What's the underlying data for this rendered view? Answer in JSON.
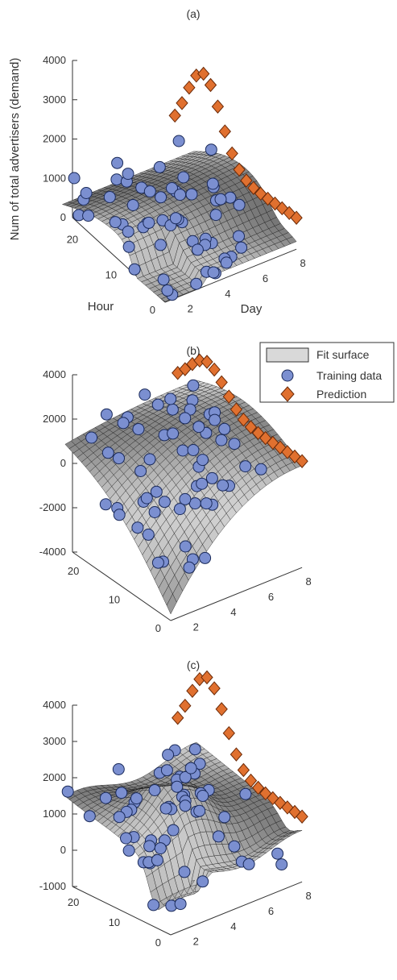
{
  "legend": {
    "items": [
      {
        "label": "Fit surface",
        "marker": "rect",
        "color": "#d9d9d9"
      },
      {
        "label": "Training data",
        "marker": "circle",
        "color": "#7b8fd0"
      },
      {
        "label": "Prediction",
        "marker": "diamond",
        "color": "#e0702f"
      }
    ]
  },
  "colors": {
    "training": "#7b8fd0",
    "training_edge": "#1a2a5a",
    "prediction": "#e0702f",
    "prediction_edge": "#6b2a08",
    "surface": "#c9c9c9"
  },
  "chart_data": [
    {
      "panel": "(a)",
      "type": "surface3d",
      "title": "(a)",
      "zlabel": "Num of total advertisers (demand)",
      "xlabel": "Day",
      "ylabel": "Hour",
      "x_ticks": [
        "2",
        "4",
        "6",
        "8"
      ],
      "y_ticks": [
        "0",
        "10",
        "20"
      ],
      "z_ticks": [
        "0",
        "1000",
        "2000",
        "3000",
        "4000"
      ],
      "zlim": [
        0,
        4000
      ],
      "series": [
        {
          "name": "Fit surface",
          "kind": "surface"
        },
        {
          "name": "Training data",
          "kind": "scatter",
          "approx_range": [
            0,
            2400
          ]
        },
        {
          "name": "Prediction",
          "kind": "scatter",
          "x_range": [
            7,
            8
          ],
          "peak": 2900
        }
      ]
    },
    {
      "panel": "(b)",
      "type": "surface3d",
      "title": "(b)",
      "x_ticks": [
        "2",
        "4",
        "6",
        "8"
      ],
      "y_ticks": [
        "0",
        "10",
        "20"
      ],
      "z_ticks": [
        "-4000",
        "-2000",
        "0",
        "2000",
        "4000"
      ],
      "zlim": [
        -4000,
        4000
      ],
      "series": [
        {
          "name": "Fit surface",
          "kind": "surface",
          "min": -3800
        },
        {
          "name": "Training data",
          "kind": "scatter"
        },
        {
          "name": "Prediction",
          "kind": "scatter",
          "peak": 2600
        }
      ]
    },
    {
      "panel": "(c)",
      "type": "surface3d",
      "title": "(c)",
      "x_ticks": [
        "2",
        "4",
        "6",
        "8"
      ],
      "y_ticks": [
        "0",
        "10",
        "20"
      ],
      "z_ticks": [
        "-1000",
        "0",
        "1000",
        "2000",
        "3000",
        "4000"
      ],
      "zlim": [
        -1000,
        4000
      ],
      "series": [
        {
          "name": "Fit surface",
          "kind": "surface"
        },
        {
          "name": "Training data",
          "kind": "scatter"
        },
        {
          "name": "Prediction",
          "kind": "scatter",
          "peak": 3000
        }
      ]
    }
  ]
}
